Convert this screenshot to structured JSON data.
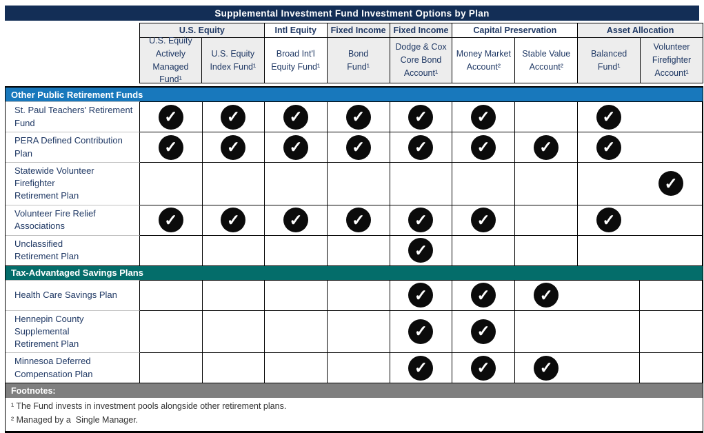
{
  "title": "Supplemental Investment Fund Investment Options by Plan",
  "colors": {
    "title_bg": "#132E56",
    "section1_bg": "#1878BC",
    "section2_bg": "#046D6A",
    "footnotes_bg": "#7F7F7F",
    "header_text": "#1F3864",
    "shaded_cell_bg": "#EDEDED",
    "check_circle_bg": "#0B0B0B",
    "grid_border": "#000000",
    "label_divider": "#BFBFBF"
  },
  "check_icon": {
    "name": "check-icon",
    "glyph": "✓"
  },
  "column_groups": [
    {
      "label": "U.S. Equity",
      "span": 2,
      "shaded": true
    },
    {
      "label": "Intl Equity",
      "span": 1,
      "shaded": false
    },
    {
      "label": "Fixed Income",
      "span": 1,
      "shaded": true
    },
    {
      "label": "Fixed Income",
      "span": 1,
      "shaded": true
    },
    {
      "label": "Capital Preservation",
      "span": 2,
      "shaded": false
    },
    {
      "label": "Asset Allocation",
      "span": 2,
      "shaded": true
    }
  ],
  "columns": [
    {
      "label": "U.S. Equity\nActively\nManaged Fund¹",
      "shaded": true
    },
    {
      "label": "U.S. Equity\nIndex Fund¹",
      "shaded": true
    },
    {
      "label": "Broad Int'l\nEquity Fund¹",
      "shaded": false
    },
    {
      "label": "Bond\nFund¹",
      "shaded": true
    },
    {
      "label": "Dodge & Cox\nCore Bond\nAccount¹",
      "shaded": true
    },
    {
      "label": "Money Market\nAccount²",
      "shaded": false
    },
    {
      "label": "Stable Value\nAccount²",
      "shaded": false
    },
    {
      "label": "Balanced Fund¹",
      "shaded": true
    },
    {
      "label": "Volunteer\nFirefighter\nAccount¹",
      "shaded": true
    }
  ],
  "sections": [
    {
      "label": "Other Public Retirement Funds",
      "color_key": "section1_bg",
      "rows": [
        {
          "label": "St. Paul Teachers' Retirement\nFund",
          "checks": [
            1,
            1,
            1,
            1,
            1,
            1,
            0,
            1,
            0
          ]
        },
        {
          "label": "PERA Defined Contribution Plan",
          "checks": [
            1,
            1,
            1,
            1,
            1,
            1,
            1,
            1,
            0
          ]
        },
        {
          "label": "Statewide Volunteer Firefighter\nRetirement Plan",
          "checks": [
            0,
            0,
            0,
            0,
            0,
            0,
            0,
            0,
            1
          ]
        },
        {
          "label": "Volunteer Fire Relief\nAssociations",
          "checks": [
            1,
            1,
            1,
            1,
            1,
            1,
            0,
            1,
            0
          ]
        },
        {
          "label": "Unclassified\nRetirement Plan",
          "checks": [
            0,
            0,
            0,
            0,
            1,
            0,
            0,
            0,
            0
          ]
        }
      ]
    },
    {
      "label": "Tax-Advantaged Savings Plans",
      "color_key": "section2_bg",
      "rows": [
        {
          "label": "Health Care Savings Plan",
          "checks": [
            0,
            0,
            0,
            0,
            1,
            1,
            1,
            0,
            0
          ]
        },
        {
          "label": "Hennepin County Supplemental\nRetirement Plan",
          "checks": [
            0,
            0,
            0,
            0,
            1,
            1,
            0,
            0,
            0
          ]
        },
        {
          "label": "Minnesoa Deferred\nCompensation Plan",
          "checks": [
            0,
            0,
            0,
            0,
            1,
            1,
            1,
            0,
            0
          ]
        }
      ]
    }
  ],
  "footnotes": {
    "header": "Footnotes:",
    "items": [
      "¹ The Fund invests in investment pools alongside other retirement plans.",
      "² Managed by a  Single Manager."
    ]
  }
}
